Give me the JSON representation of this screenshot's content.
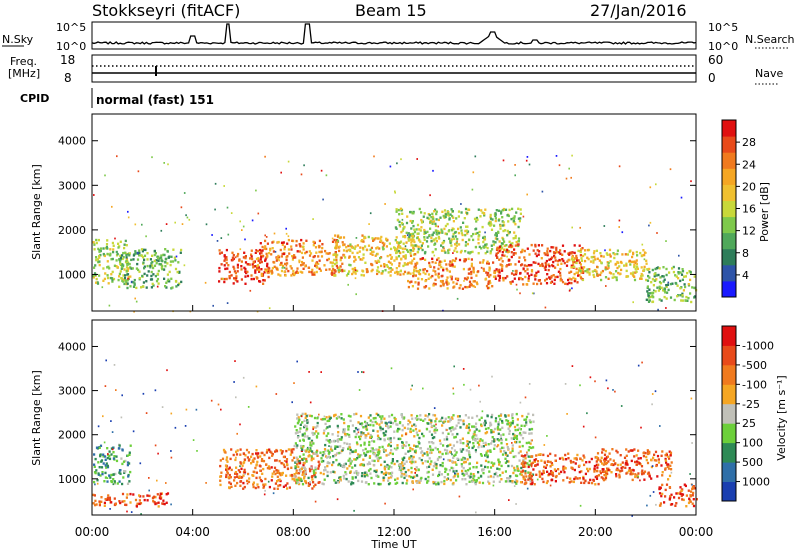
{
  "header": {
    "station": "Stokkseyri (fitACF)",
    "beam": "Beam 15",
    "date": "27/Jan/2016"
  },
  "strips": {
    "nsky_label": "N.Sky",
    "nsky_ticks": [
      "10^5",
      "10^0"
    ],
    "nsearch_label": "N.Search",
    "nsearch_ticks": [
      "10^5",
      "10^0"
    ],
    "freq_label_1": "Freq.",
    "freq_label_2": "[MHz]",
    "freq_ticks": [
      "18",
      "8"
    ],
    "nave_label": "Nave",
    "nave_ticks": [
      "60",
      "0"
    ],
    "cpid_label": "CPID",
    "cpid_value": "normal (fast) 151"
  },
  "chart_data": [
    {
      "type": "heatmap",
      "name": "power",
      "ylabel": "Slant Range [km]",
      "xlabel": "Time UT",
      "yticks": [
        "1000",
        "2000",
        "3000",
        "4000"
      ],
      "ylim": [
        180,
        4600
      ],
      "xlim": [
        0,
        24
      ],
      "colorbar": {
        "label": "Power [dB]",
        "ticks": [
          "4",
          "8",
          "12",
          "16",
          "20",
          "24",
          "28"
        ],
        "colors": [
          "#1a1aff",
          "#2e54a8",
          "#2e7d5a",
          "#4fa85a",
          "#7ec94b",
          "#c8d83a",
          "#f0c030",
          "#f5a623",
          "#f07a1e",
          "#e84a1a",
          "#e01010"
        ]
      },
      "scatter_bands": [
        {
          "t0": 0.0,
          "t1": 1.5,
          "r0": 800,
          "r1": 1800,
          "level": 0.45
        },
        {
          "t0": 1.0,
          "t1": 3.5,
          "r0": 700,
          "r1": 1600,
          "level": 0.35
        },
        {
          "t0": 5.0,
          "t1": 7.0,
          "r0": 800,
          "r1": 1600,
          "level": 0.9
        },
        {
          "t0": 6.5,
          "t1": 10.0,
          "r0": 1000,
          "r1": 1800,
          "level": 0.75
        },
        {
          "t0": 9.5,
          "t1": 13.0,
          "r0": 1000,
          "r1": 1900,
          "level": 0.6
        },
        {
          "t0": 12.5,
          "t1": 16.0,
          "r0": 700,
          "r1": 1400,
          "level": 0.75
        },
        {
          "t0": 12.0,
          "t1": 17.0,
          "r0": 1500,
          "r1": 2500,
          "level": 0.45
        },
        {
          "t0": 16.0,
          "t1": 19.5,
          "r0": 800,
          "r1": 1700,
          "level": 0.85
        },
        {
          "t0": 19.0,
          "t1": 22.0,
          "r0": 900,
          "r1": 1600,
          "level": 0.6
        },
        {
          "t0": 22.0,
          "t1": 24.0,
          "r0": 400,
          "r1": 1200,
          "level": 0.4
        }
      ]
    },
    {
      "type": "heatmap",
      "name": "velocity",
      "ylabel": "Slant Range [km]",
      "xlabel": "Time UT",
      "yticks": [
        "1000",
        "2000",
        "3000",
        "4000"
      ],
      "ylim": [
        180,
        4600
      ],
      "xlim": [
        0,
        24
      ],
      "colorbar": {
        "label": "Velocity [m s⁻¹]",
        "ticks": [
          "1000",
          "500",
          "100",
          "25",
          "-25",
          "-100",
          "-500",
          "-1000"
        ],
        "colors": [
          "#1a3fb0",
          "#2f6fa8",
          "#2e8a55",
          "#6ccf3a",
          "#c0c0b8",
          "#f5a623",
          "#f07a1e",
          "#e84a1a",
          "#e01010"
        ]
      },
      "scatter_bands": [
        {
          "t0": 0.0,
          "t1": 1.5,
          "r0": 900,
          "r1": 1800,
          "level": 0.3
        },
        {
          "t0": 0.0,
          "t1": 3.0,
          "r0": 400,
          "r1": 700,
          "level": 0.8
        },
        {
          "t0": 5.0,
          "t1": 9.0,
          "r0": 800,
          "r1": 1700,
          "level": 0.75
        },
        {
          "t0": 8.0,
          "t1": 17.5,
          "r0": 900,
          "r1": 2500,
          "level": 0.45
        },
        {
          "t0": 17.0,
          "t1": 20.5,
          "r0": 900,
          "r1": 1600,
          "level": 0.8
        },
        {
          "t0": 20.0,
          "t1": 23.0,
          "r0": 1000,
          "r1": 1700,
          "level": 0.78
        },
        {
          "t0": 22.5,
          "t1": 24.0,
          "r0": 400,
          "r1": 900,
          "level": 0.82
        }
      ]
    }
  ],
  "time_axis": {
    "ticks": [
      "00:00",
      "04:00",
      "08:00",
      "12:00",
      "16:00",
      "20:00",
      "00:00"
    ],
    "label": "Time UT"
  }
}
